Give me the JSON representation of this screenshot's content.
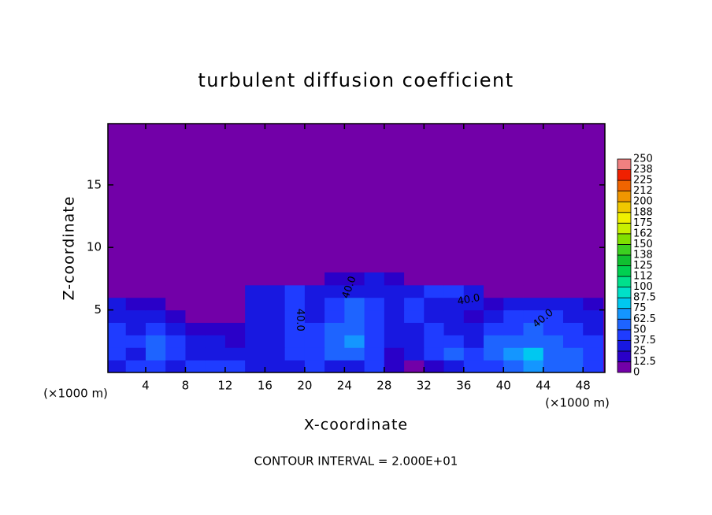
{
  "chart_data": {
    "type": "heatmap",
    "title": "turbulent diffusion coefficient",
    "x_label": "X-coordinate",
    "y_label": "Z-coordinate",
    "x_unit": "(×1000 m)",
    "y_unit": "(×1000 m)",
    "footer": "CONTOUR INTERVAL = 2.000E+01",
    "contour_labels": [
      "40.0",
      "40.0",
      "40.0",
      "40.0"
    ],
    "xlim": [
      0.2,
      50.2
    ],
    "ylim": [
      0,
      19.9
    ],
    "xticks": [
      4,
      8,
      12,
      16,
      20,
      24,
      28,
      32,
      36,
      40,
      44,
      48
    ],
    "yticks": [
      5,
      10,
      15
    ],
    "x": [
      1,
      3,
      5,
      7,
      9,
      11,
      13,
      15,
      17,
      19,
      21,
      23,
      25,
      27,
      29,
      31,
      33,
      35,
      37,
      39,
      41,
      43,
      45,
      47,
      49
    ],
    "y": [
      0.5,
      1.5,
      2.5,
      3.5,
      4.5,
      5.5,
      6.5,
      7.5
    ],
    "z": [
      [
        35,
        40,
        45,
        30,
        40,
        45,
        40,
        35,
        30,
        35,
        40,
        30,
        35,
        40,
        15,
        10,
        20,
        35,
        40,
        45,
        55,
        70,
        60,
        55,
        45
      ],
      [
        40,
        35,
        50,
        40,
        35,
        30,
        30,
        35,
        35,
        40,
        45,
        50,
        60,
        40,
        20,
        30,
        45,
        50,
        40,
        55,
        65,
        75,
        55,
        50,
        40
      ],
      [
        45,
        40,
        55,
        45,
        30,
        25,
        20,
        35,
        35,
        40,
        45,
        55,
        65,
        40,
        30,
        35,
        40,
        45,
        35,
        50,
        60,
        55,
        50,
        45,
        40
      ],
      [
        40,
        35,
        45,
        30,
        20,
        15,
        15,
        35,
        35,
        40,
        40,
        50,
        60,
        40,
        35,
        35,
        40,
        30,
        25,
        40,
        45,
        50,
        45,
        40,
        35
      ],
      [
        35,
        30,
        30,
        15,
        10,
        10,
        10,
        35,
        35,
        40,
        35,
        45,
        55,
        40,
        35,
        40,
        35,
        25,
        20,
        30,
        40,
        45,
        40,
        35,
        30
      ],
      [
        25,
        20,
        15,
        10,
        5,
        5,
        5,
        35,
        35,
        45,
        30,
        40,
        50,
        40,
        35,
        40,
        35,
        30,
        25,
        20,
        30,
        35,
        30,
        25,
        20
      ],
      [
        5,
        5,
        5,
        5,
        5,
        5,
        5,
        30,
        30,
        40,
        25,
        35,
        35,
        35,
        30,
        35,
        40,
        45,
        30,
        10,
        10,
        10,
        5,
        5,
        5
      ],
      [
        0,
        0,
        0,
        0,
        0,
        0,
        0,
        5,
        5,
        10,
        10,
        15,
        20,
        25,
        15,
        10,
        5,
        5,
        0,
        0,
        0,
        0,
        0,
        0,
        0
      ]
    ],
    "colorbar": {
      "levels": [
        0,
        12.5,
        25,
        37.5,
        50,
        62.5,
        75,
        87.5,
        100,
        112,
        125,
        138,
        150,
        162,
        175,
        188,
        200,
        212,
        225,
        238,
        250
      ],
      "colors": [
        "#7200a8",
        "#2a00c8",
        "#1818e0",
        "#1f3cff",
        "#1e64ff",
        "#1496ff",
        "#00c8f0",
        "#00e0c8",
        "#00e08c",
        "#00d050",
        "#10c030",
        "#3cd020",
        "#80e000",
        "#c8f000",
        "#f0f000",
        "#f0c800",
        "#f09600",
        "#f06400",
        "#f02000",
        "#f08080"
      ]
    }
  }
}
